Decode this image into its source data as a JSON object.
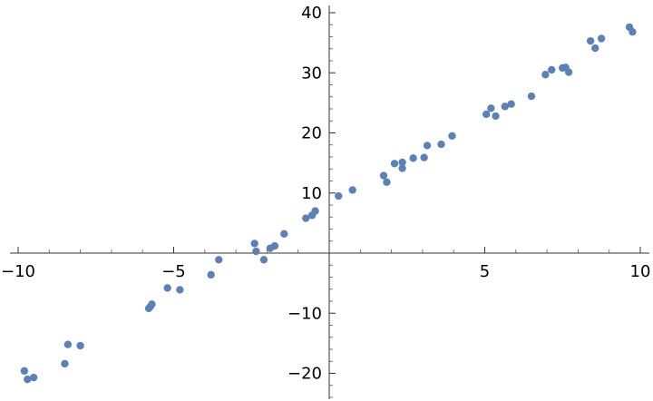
{
  "chart_data": {
    "type": "scatter",
    "title": "",
    "xlabel": "",
    "ylabel": "",
    "xlim": [
      -10,
      10
    ],
    "ylim": [
      -24,
      41
    ],
    "grid": false,
    "x_ticks": [
      -10,
      -5,
      5,
      10
    ],
    "y_ticks": [
      -20,
      -10,
      10,
      20,
      30,
      40
    ],
    "x_tick_labels": [
      "−10",
      "−5",
      "5",
      "10"
    ],
    "y_tick_labels": [
      "−20",
      "−10",
      "10",
      "20",
      "30",
      "40"
    ],
    "marker_color": "#5e81b5",
    "series": [
      {
        "points": [
          [
            -9.8,
            -19.6
          ],
          [
            -9.7,
            -21.0
          ],
          [
            -9.5,
            -20.7
          ],
          [
            -8.5,
            -18.4
          ],
          [
            -8.4,
            -15.2
          ],
          [
            -8.0,
            -15.4
          ],
          [
            -5.8,
            -9.2
          ],
          [
            -5.75,
            -8.9
          ],
          [
            -5.7,
            -8.5
          ],
          [
            -5.2,
            -5.8
          ],
          [
            -4.8,
            -6.1
          ],
          [
            -3.8,
            -3.6
          ],
          [
            -3.55,
            -1.1
          ],
          [
            -2.4,
            1.6
          ],
          [
            -2.35,
            0.3
          ],
          [
            -2.1,
            -1.1
          ],
          [
            -1.9,
            0.8
          ],
          [
            -1.75,
            1.2
          ],
          [
            -1.45,
            3.2
          ],
          [
            -0.75,
            5.8
          ],
          [
            -0.55,
            6.3
          ],
          [
            -0.45,
            7.0
          ],
          [
            0.3,
            9.5
          ],
          [
            0.75,
            10.5
          ],
          [
            1.75,
            12.9
          ],
          [
            1.85,
            11.8
          ],
          [
            2.1,
            14.9
          ],
          [
            2.35,
            14.1
          ],
          [
            2.35,
            15.1
          ],
          [
            2.7,
            15.8
          ],
          [
            3.05,
            15.9
          ],
          [
            3.15,
            17.9
          ],
          [
            3.6,
            18.1
          ],
          [
            3.95,
            19.5
          ],
          [
            5.05,
            23.1
          ],
          [
            5.2,
            24.1
          ],
          [
            5.35,
            22.8
          ],
          [
            5.65,
            24.4
          ],
          [
            5.85,
            24.8
          ],
          [
            6.5,
            26.1
          ],
          [
            6.95,
            29.7
          ],
          [
            7.15,
            30.5
          ],
          [
            7.5,
            30.8
          ],
          [
            7.6,
            30.9
          ],
          [
            7.7,
            30.1
          ],
          [
            8.4,
            35.3
          ],
          [
            8.55,
            34.1
          ],
          [
            8.75,
            35.7
          ],
          [
            9.65,
            37.6
          ],
          [
            9.75,
            36.8
          ]
        ]
      }
    ]
  }
}
